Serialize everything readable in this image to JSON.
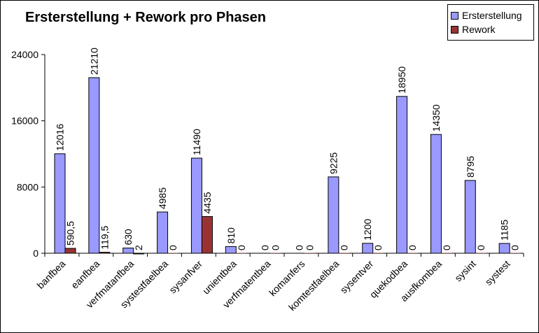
{
  "chart_data": {
    "type": "bar",
    "title": "Ersterstellung + Rework pro Phasen",
    "xlabel": "",
    "ylabel": "",
    "ylim": [
      0,
      24000
    ],
    "yticks": [
      "0",
      "8000",
      "16000",
      "24000"
    ],
    "ytick_values": [
      0,
      8000,
      16000,
      24000
    ],
    "categories": [
      "banfbea",
      "eanfbea",
      "verfmatanfbea",
      "systestfaelbea",
      "sysanfver",
      "unientbea",
      "verfmatentbea",
      "komanfers",
      "komtestfaelbea",
      "sysentver",
      "quekodbea",
      "ausfkombea",
      "sysint",
      "systest"
    ],
    "series": [
      {
        "name": "Ersterstellung",
        "color": "#9999ff",
        "values": [
          12016,
          21210,
          630,
          4985,
          11490,
          810,
          0,
          0,
          9225,
          1200,
          18950,
          14350,
          8795,
          1185
        ],
        "labels": [
          "12016",
          "21210",
          "630",
          "4985",
          "11490",
          "810",
          "0",
          "0",
          "9225",
          "1200",
          "18950",
          "14350",
          "8795",
          "1185"
        ]
      },
      {
        "name": "Rework",
        "color": "#993333",
        "values": [
          590.5,
          119.5,
          2,
          0,
          4435,
          0,
          0,
          0,
          0,
          0,
          0,
          0,
          0,
          0
        ],
        "labels": [
          "590,5",
          "119,5",
          "2",
          "0",
          "4435",
          "0",
          "0",
          "0",
          "0",
          "0",
          "0",
          "0",
          "0",
          "0"
        ]
      }
    ],
    "grid": false,
    "legend_position": "top-right"
  }
}
